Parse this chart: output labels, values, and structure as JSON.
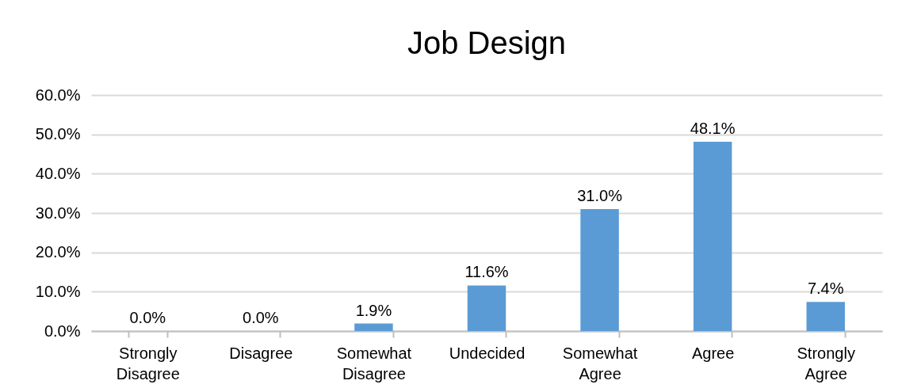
{
  "chart_data": {
    "type": "bar",
    "title": "Job Design",
    "categories": [
      "Strongly Disagree",
      "Disagree",
      "Somewhat Disagree",
      "Undecided",
      "Somewhat Agree",
      "Agree",
      "Strongly Agree"
    ],
    "values": [
      0,
      0,
      1.9,
      11.6,
      31.0,
      48.1,
      7.4
    ],
    "value_labels": [
      "0.0%",
      "0.0%",
      "1.9%",
      "11.6%",
      "31.0%",
      "48.1%",
      "7.4%"
    ],
    "color": "#5b9bd5",
    "ylim": [
      0,
      60
    ],
    "yticks": [
      {
        "value": 0,
        "label": "0.0%"
      },
      {
        "value": 10,
        "label": "10.0%"
      },
      {
        "value": 20,
        "label": "20.0%"
      },
      {
        "value": 30,
        "label": "30.0%"
      },
      {
        "value": 40,
        "label": "40.0%"
      },
      {
        "value": 50,
        "label": "50.0%"
      },
      {
        "value": 60,
        "label": "60.0%"
      }
    ],
    "grid": "y"
  }
}
